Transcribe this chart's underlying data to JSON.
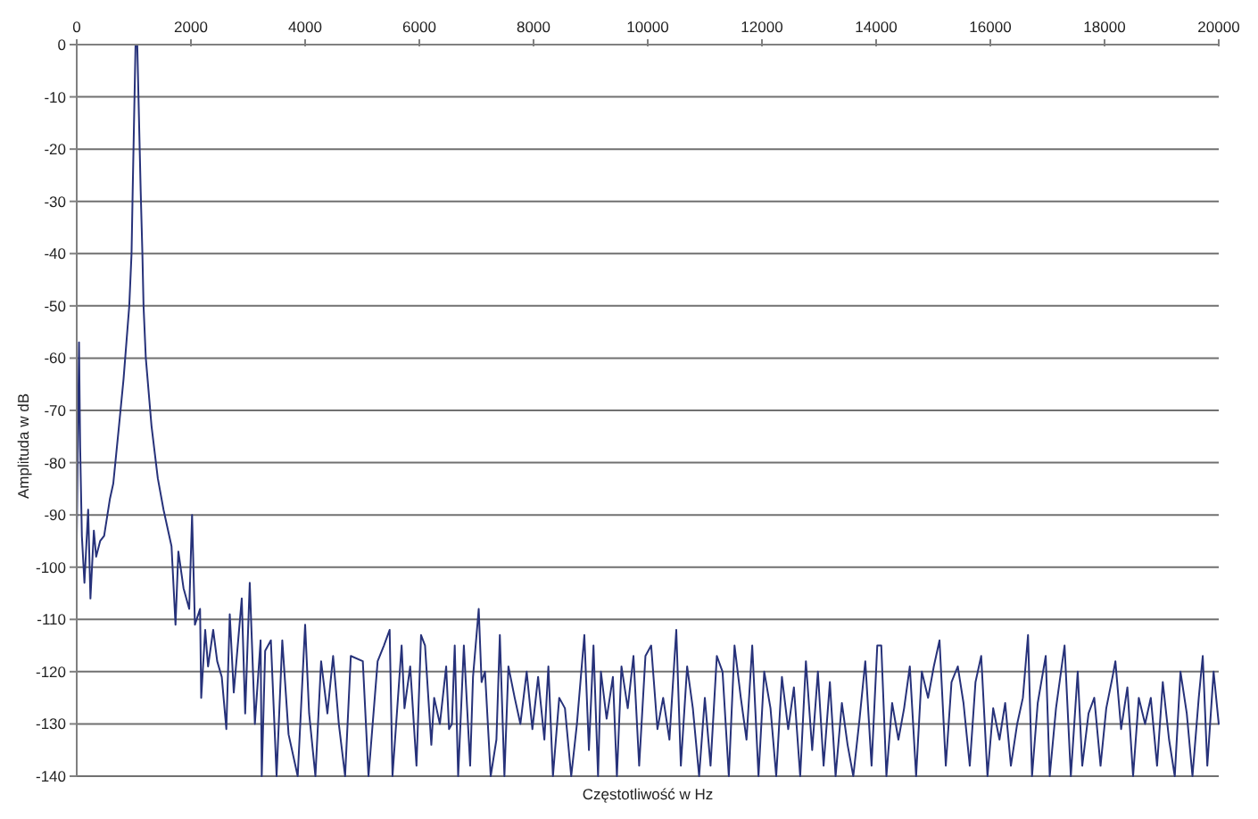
{
  "chart_data": {
    "type": "line",
    "xlabel": "Częstotliwość w Hz",
    "ylabel": "Amplituda w dB",
    "x": [
      0,
      40,
      60,
      90,
      135,
      200,
      240,
      300,
      340,
      410,
      480,
      580,
      640,
      740,
      820,
      920,
      960,
      980,
      1030,
      1060,
      1120,
      1150,
      1170,
      1210,
      1310,
      1420,
      1520,
      1660,
      1730,
      1780,
      1870,
      1970,
      2020,
      2070,
      2160,
      2180,
      2250,
      2300,
      2390,
      2460,
      2540,
      2620,
      2680,
      2750,
      2820,
      2890,
      2950,
      3030,
      3120,
      3220,
      3240,
      3300,
      3400,
      3500,
      3600,
      3710,
      3870,
      4000,
      4070,
      4180,
      4280,
      4390,
      4490,
      4590,
      4700,
      4800,
      5010,
      5110,
      5270,
      5380,
      5480,
      5530,
      5690,
      5740,
      5840,
      5950,
      6030,
      6100,
      6210,
      6260,
      6360,
      6470,
      6520,
      6570,
      6620,
      6680,
      6780,
      6890,
      6940,
      7040,
      7090,
      7150,
      7250,
      7350,
      7410,
      7490,
      7560,
      7670,
      7770,
      7880,
      7980,
      8080,
      8190,
      8260,
      8340,
      8450,
      8550,
      8660,
      8760,
      8890,
      8970,
      9050,
      9130,
      9180,
      9280,
      9390,
      9460,
      9540,
      9650,
      9750,
      9850,
      9960,
      10060,
      10170,
      10270,
      10380,
      10500,
      10580,
      10690,
      10790,
      10900,
      11000,
      11100,
      11210,
      11310,
      11420,
      11520,
      11630,
      11730,
      11830,
      11940,
      12040,
      12150,
      12250,
      12350,
      12460,
      12560,
      12670,
      12770,
      12880,
      12980,
      13080,
      13190,
      13290,
      13400,
      13500,
      13600,
      13710,
      13810,
      13920,
      14020,
      14090,
      14180,
      14280,
      14390,
      14490,
      14590,
      14700,
      14800,
      14910,
      15010,
      15110,
      15220,
      15320,
      15430,
      15530,
      15640,
      15740,
      15840,
      15950,
      16050,
      16160,
      16260,
      16360,
      16470,
      16570,
      16660,
      16730,
      16830,
      16970,
      17040,
      17150,
      17300,
      17410,
      17530,
      17610,
      17720,
      17820,
      17930,
      18030,
      18140,
      18190,
      18290,
      18400,
      18500,
      18600,
      18710,
      18810,
      18920,
      19020,
      19130,
      19230,
      19330,
      19440,
      19540,
      19650,
      19720,
      19800,
      19910,
      20000
    ],
    "series": [
      {
        "color": "#27327a",
        "values": [
          -95,
          -57,
          -77,
          -94,
          -103,
          -89,
          -106,
          -93,
          -98,
          -95,
          -94,
          -87,
          -84,
          -73,
          -64,
          -50,
          -40,
          -28,
          0,
          0,
          -28,
          -40,
          -50,
          -60,
          -73,
          -83,
          -89,
          -96,
          -111,
          -97,
          -104,
          -108,
          -90,
          -111,
          -108,
          -125,
          -112,
          -119,
          -112,
          -118,
          -121,
          -131,
          -109,
          -124,
          -115,
          -106,
          -128,
          -103,
          -130,
          -114,
          -140,
          -116,
          -114,
          -140,
          -114,
          -132,
          -140,
          -111,
          -128,
          -140,
          -118,
          -128,
          -117,
          -130,
          -140,
          -117,
          -118,
          -140,
          -118,
          -115,
          -112,
          -140,
          -115,
          -127,
          -119,
          -138,
          -113,
          -115,
          -134,
          -125,
          -130,
          -119,
          -131,
          -130,
          -115,
          -140,
          -115,
          -138,
          -121,
          -108,
          -122,
          -120,
          -140,
          -133,
          -113,
          -140,
          -119,
          -125,
          -130,
          -120,
          -131,
          -121,
          -133,
          -119,
          -140,
          -125,
          -127,
          -140,
          -130,
          -113,
          -135,
          -115,
          -140,
          -120,
          -129,
          -121,
          -140,
          -119,
          -127,
          -117,
          -138,
          -117,
          -115,
          -131,
          -125,
          -133,
          -112,
          -138,
          -119,
          -127,
          -140,
          -125,
          -138,
          -117,
          -120,
          -140,
          -115,
          -125,
          -133,
          -115,
          -140,
          -120,
          -127,
          -140,
          -121,
          -131,
          -123,
          -140,
          -118,
          -135,
          -120,
          -138,
          -122,
          -140,
          -126,
          -134,
          -140,
          -129,
          -118,
          -138,
          -115,
          -115,
          -140,
          -126,
          -133,
          -127,
          -119,
          -140,
          -120,
          -125,
          -119,
          -114,
          -138,
          -122,
          -119,
          -126,
          -138,
          -122,
          -117,
          -140,
          -127,
          -133,
          -126,
          -138,
          -130,
          -125,
          -113,
          -140,
          -126,
          -117,
          -140,
          -127,
          -115,
          -140,
          -120,
          -138,
          -128,
          -125,
          -138,
          -127,
          -121,
          -118,
          -131,
          -123,
          -140,
          -125,
          -130,
          -125,
          -138,
          -122,
          -133,
          -140,
          -120,
          -128,
          -140,
          -125,
          -117,
          -138,
          -120,
          -130
        ]
      }
    ],
    "xlim": [
      0,
      20000
    ],
    "ylim": [
      -140,
      0
    ],
    "xticks": [
      0,
      2000,
      4000,
      6000,
      8000,
      10000,
      12000,
      14000,
      16000,
      18000,
      20000
    ],
    "yticks": [
      0,
      -10,
      -20,
      -30,
      -40,
      -50,
      -60,
      -70,
      -80,
      -90,
      -100,
      -110,
      -120,
      -130,
      -140
    ],
    "grid": "y"
  }
}
